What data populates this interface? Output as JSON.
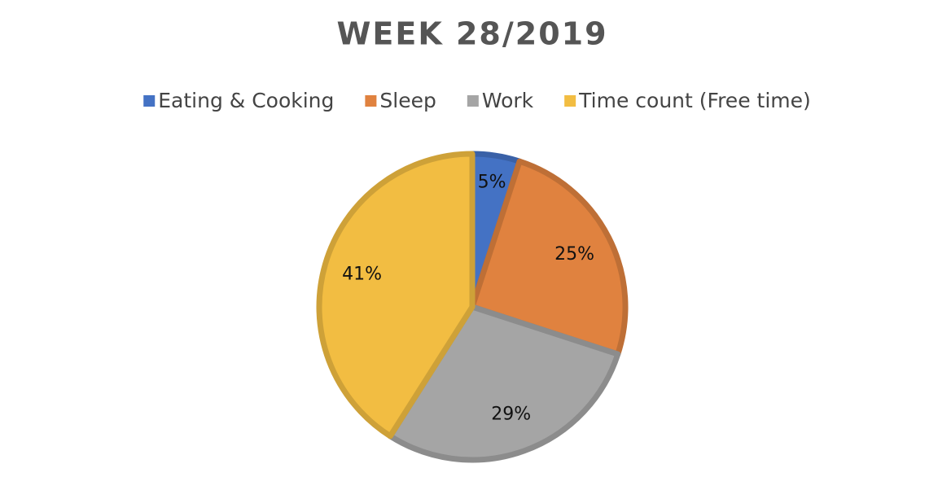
{
  "chart_data": {
    "type": "pie",
    "title": "WEEK 28/2019",
    "categories": [
      "Eating & Cooking",
      "Sleep",
      "Work",
      "Time count (Free time)"
    ],
    "values": [
      5,
      25,
      29,
      41
    ],
    "value_labels": [
      "5%",
      "25%",
      "29%",
      "41%"
    ],
    "colors": [
      "#4472c4",
      "#e0823f",
      "#a5a5a5",
      "#f2bd42"
    ],
    "legend": "top"
  }
}
